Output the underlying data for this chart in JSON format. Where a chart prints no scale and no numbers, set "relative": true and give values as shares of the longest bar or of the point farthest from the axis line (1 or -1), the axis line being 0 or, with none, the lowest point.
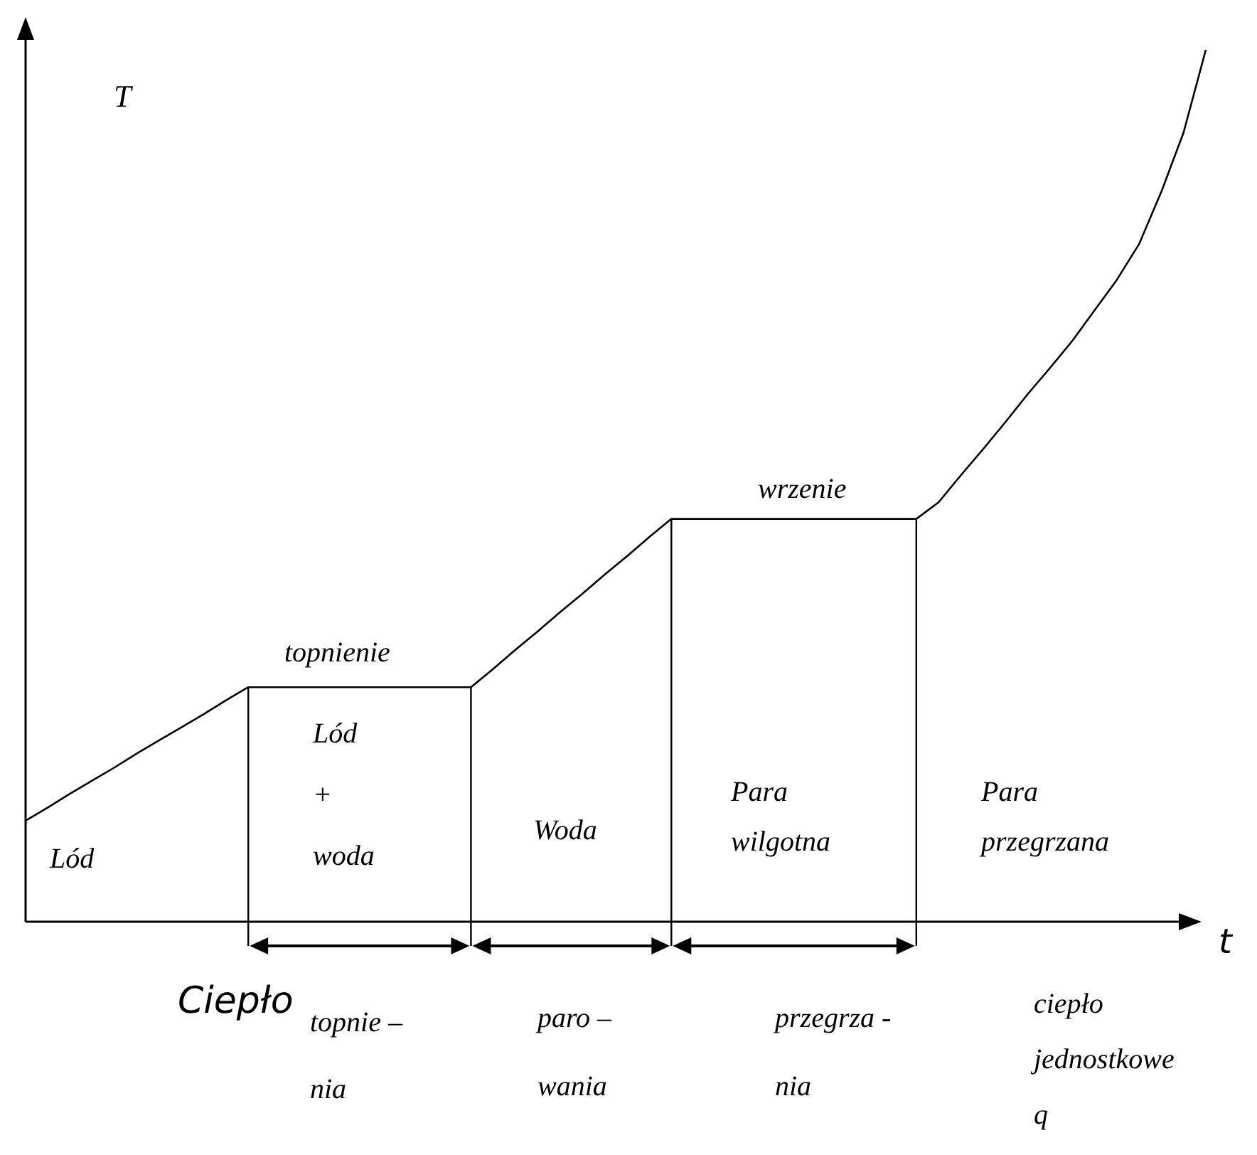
{
  "chart_data": {
    "type": "line",
    "relative": true,
    "xlabel": "t",
    "ylabel": "T",
    "categories": [
      null,
      null,
      null,
      null,
      null,
      null,
      null,
      null,
      null,
      null,
      null,
      null,
      null,
      null,
      null,
      null,
      null,
      null,
      null,
      null,
      null,
      null,
      null,
      null,
      null,
      null,
      null,
      null,
      null,
      null,
      null,
      null,
      null,
      null,
      null,
      null,
      null,
      null,
      null,
      null,
      null,
      null,
      null,
      null,
      null,
      null,
      null,
      null,
      null,
      null,
      null,
      null,
      null,
      null
    ],
    "series": [
      {
        "color": "#000000",
        "values": [
          0.116,
          0.131,
          0.147,
          0.162,
          0.177,
          0.193,
          0.208,
          0.223,
          0.238,
          0.254,
          0.269,
          0.269,
          0.269,
          0.269,
          0.269,
          0.269,
          0.269,
          0.269,
          0.269,
          0.269,
          0.269,
          0.29,
          0.312,
          0.333,
          0.355,
          0.376,
          0.398,
          0.419,
          0.441,
          0.462,
          0.462,
          0.462,
          0.462,
          0.462,
          0.462,
          0.462,
          0.462,
          0.462,
          0.462,
          0.462,
          0.462,
          0.481,
          0.512,
          0.542,
          0.573,
          0.605,
          0.635,
          0.666,
          0.701,
          0.736,
          0.777,
          0.837,
          0.905,
          1
        ]
      }
    ],
    "annotations": [
      "topnienie",
      "wrzenie",
      "Lód",
      "Lód\n+\nwoda",
      "Woda",
      "Para\nwilgotna",
      "Para\nprzegrzana",
      "Ciepło",
      "topnie –\nnia",
      "paro –\nwania",
      "przegrza -\nnia",
      "ciepło\njednostkowe\nq"
    ]
  }
}
